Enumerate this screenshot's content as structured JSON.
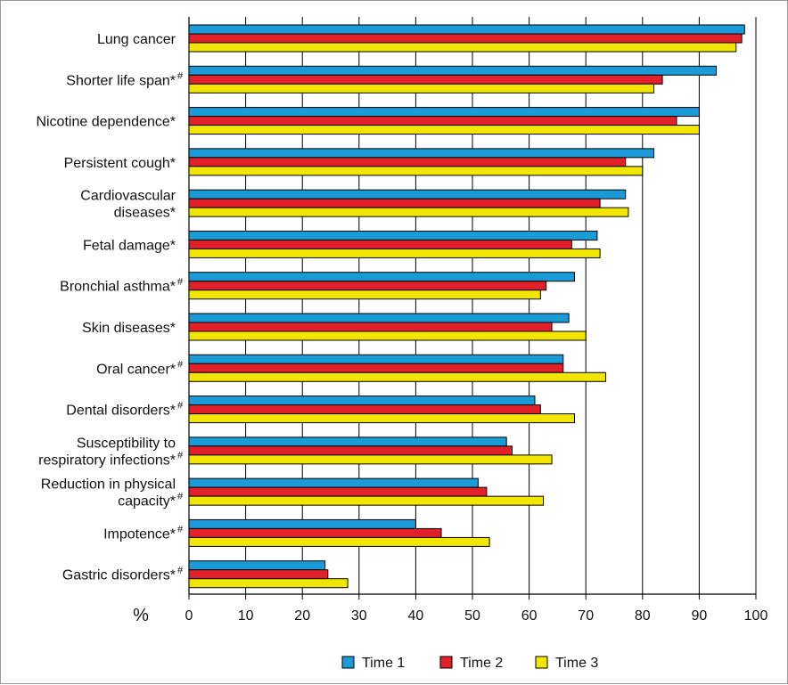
{
  "chart_data": {
    "type": "bar",
    "orientation": "horizontal",
    "xlabel": "%",
    "xlim": [
      0,
      100
    ],
    "xticks": [
      "0",
      "10",
      "20",
      "30",
      "40",
      "50",
      "60",
      "70",
      "80",
      "90",
      "100"
    ],
    "grid": "vertical",
    "legend_placement": "bottom-center",
    "categories": [
      {
        "lines": [
          "Lung cancer"
        ],
        "suffix": ""
      },
      {
        "lines": [
          "Shorter life span*"
        ],
        "suffix": "#"
      },
      {
        "lines": [
          "Nicotine dependence*"
        ],
        "suffix": ""
      },
      {
        "lines": [
          "Persistent cough*"
        ],
        "suffix": ""
      },
      {
        "lines": [
          "Cardiovascular",
          "diseases*"
        ],
        "suffix": ""
      },
      {
        "lines": [
          "Fetal damage*"
        ],
        "suffix": ""
      },
      {
        "lines": [
          "Bronchial asthma*"
        ],
        "suffix": "#"
      },
      {
        "lines": [
          "Skin diseases*"
        ],
        "suffix": ""
      },
      {
        "lines": [
          "Oral cancer*"
        ],
        "suffix": "#"
      },
      {
        "lines": [
          "Dental disorders*"
        ],
        "suffix": "#"
      },
      {
        "lines": [
          "Susceptibility to",
          "respiratory infections*"
        ],
        "suffix": "#"
      },
      {
        "lines": [
          "Reduction in physical",
          "capacity*"
        ],
        "suffix": "#"
      },
      {
        "lines": [
          "Impotence*"
        ],
        "suffix": "#"
      },
      {
        "lines": [
          "Gastric disorders*"
        ],
        "suffix": "#"
      }
    ],
    "series": [
      {
        "name": "Time 1",
        "color": "#1a9ad6",
        "values": [
          98,
          93,
          90,
          82,
          77,
          72,
          68,
          67,
          66,
          61,
          56,
          51,
          40,
          24
        ]
      },
      {
        "name": "Time 2",
        "color": "#e2202a",
        "values": [
          97.5,
          83.5,
          86,
          77,
          72.5,
          67.5,
          63,
          64,
          66,
          62,
          57,
          52.5,
          44.5,
          24.5
        ]
      },
      {
        "name": "Time 3",
        "color": "#f2e600",
        "values": [
          96.5,
          82,
          90,
          80,
          77.5,
          72.5,
          62,
          70,
          73.5,
          68,
          64,
          62.5,
          53,
          28
        ]
      }
    ]
  }
}
